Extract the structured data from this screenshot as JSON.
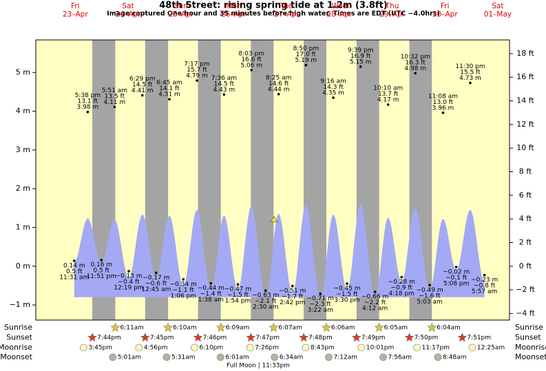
{
  "chart_data": {
    "type": "tide",
    "title": "48th Street: rising  spring tide at 1.2m (3.8ft)",
    "subtitle": "Image captured One hour and 35 minutes before high water. Times are EDT (UTC −4.0hrs)",
    "days": [
      {
        "name": "Fri",
        "date": "23–Apr"
      },
      {
        "name": "Sat",
        "date": "24–Apr"
      },
      {
        "name": "Sun",
        "date": "25–Apr"
      },
      {
        "name": "Mon",
        "date": "26–Apr"
      },
      {
        "name": "Tue",
        "date": "27–Apr"
      },
      {
        "name": "Wed",
        "date": "28–Apr"
      },
      {
        "name": "Thu",
        "date": "29–Apr"
      },
      {
        "name": "Fri",
        "date": "30–Apr"
      },
      {
        "name": "Sat",
        "date": "01–May"
      }
    ],
    "ylim": [
      -1.39,
      5.84
    ],
    "yticks": [
      {
        "value": -1,
        "label": "−1 m"
      },
      {
        "value": 0,
        "label": "0 m"
      },
      {
        "value": 1,
        "label": "1 m"
      },
      {
        "value": 2,
        "label": "2 m"
      },
      {
        "value": 3,
        "label": "3 m"
      },
      {
        "value": 4,
        "label": "4 m"
      },
      {
        "value": 5,
        "label": "5 m"
      }
    ],
    "y2lim": [
      -4.56,
      19.16
    ],
    "y2ticks": [
      {
        "value": -4,
        "label": "−4 ft"
      },
      {
        "value": -2,
        "label": "−2 ft"
      },
      {
        "value": 0,
        "label": "0 ft"
      },
      {
        "value": 2,
        "label": "2 ft"
      },
      {
        "value": 4,
        "label": "4 ft"
      },
      {
        "value": 6,
        "label": "6 ft"
      },
      {
        "value": 8,
        "label": "8 ft"
      },
      {
        "value": 10,
        "label": "10 ft"
      },
      {
        "value": 12,
        "label": "12 ft"
      },
      {
        "value": 14,
        "label": "14 ft"
      },
      {
        "value": 16,
        "label": "16 ft"
      },
      {
        "value": 18,
        "label": "18 ft"
      }
    ],
    "tides": {
      "times": [
        "11:31 am",
        "5:38 pm",
        "11:51 pm",
        "5:51 am",
        "12:19 pm",
        "6:29 pm",
        "12:45 am",
        "6:45 am",
        "1:06 pm",
        "7:17 pm",
        "1:38 am",
        "7:36 am",
        "1:54 pm",
        "8:03 pm",
        "2:30 am",
        "8:25 am",
        "2:42 pm",
        "8:50 pm",
        "3:22 am",
        "9:16 am",
        "3:30 pm",
        "9:39 pm",
        "4:12 am",
        "10:10 am",
        "4:18 pm",
        "10:32 pm",
        "5:03 am",
        "11:08 am",
        "5:08 pm",
        "11:30 pm",
        "5:57 am"
      ],
      "values": [
        0.14,
        3.98,
        0.16,
        4.11,
        -0.13,
        4.41,
        -0.17,
        4.31,
        -0.34,
        4.79,
        -0.44,
        4.43,
        -0.47,
        5.06,
        -0.63,
        4.44,
        -0.51,
        5.19,
        -0.71,
        4.35,
        -0.45,
        5.15,
        -0.66,
        4.17,
        -0.28,
        4.98,
        -0.49,
        3.96,
        -0.02,
        4.73,
        -0.23
      ],
      "value_labels": [
        "0.14 m",
        "3.98 m",
        "0.16 m",
        "4.11 m",
        "−0.13 m",
        "4.41 m",
        "−0.17 m",
        "4.31 m",
        "−0.34 m",
        "4.79 m",
        "−0.44 m",
        "4.43 m",
        "−0.47 m",
        "5.06 m",
        "−0.63 m",
        "4.44 m",
        "−0.51 m",
        "5.19 m",
        "−0.71 m",
        "4.35 m",
        "−0.45 m",
        "5.15 m",
        "−0.66 m",
        "4.17 m",
        "−0.28 m",
        "4.98 m",
        "−0.49 m",
        "3.96 m",
        "−0.02 m",
        "4.73 m",
        "−0.23 m"
      ],
      "ft_labels": [
        "0.5 ft",
        "13.1 ft",
        "0.5 ft",
        "13.5 ft",
        "−0.4 ft",
        "14.5 ft",
        "−0.6 ft",
        "14.1 ft",
        "−1.1 ft",
        "15.7 ft",
        "−1.4 ft",
        "14.5 ft",
        "−1.5 ft",
        "16.6 ft",
        "−2.1 ft",
        "14.6 ft",
        "−1.7 ft",
        "17.0 ft",
        "−2.3 ft",
        "14.3 ft",
        "−1.5 ft",
        "16.9 ft",
        "−2.2 ft",
        "13.7 ft",
        "−0.9 ft",
        "16.3 ft",
        "−1.6 ft",
        "13.0 ft",
        "−0.1 ft",
        "15.5 ft",
        "−0.8 ft"
      ],
      "curve_levels": [
        0.1,
        1.23,
        0.1,
        1.2,
        -0.3,
        1.33,
        -0.3,
        1.3,
        -0.5,
        1.45,
        -0.6,
        1.3,
        -0.6,
        1.55,
        -0.8,
        1.35,
        -0.7,
        1.58,
        -0.8,
        1.33,
        -0.6,
        1.58,
        -0.8,
        1.25,
        -0.4,
        1.5,
        -0.6,
        1.22,
        -0.1,
        1.45,
        -0.4
      ],
      "curve_base": -0.8,
      "fill_color": "#a3a9f5"
    },
    "marker_level": 1.2,
    "day_color": "#ffffc4",
    "night_color": "#a4a4a4",
    "astro": [
      {
        "name": "Sunrise",
        "shape": "star",
        "color": "#d8c838",
        "times": [
          null,
          "6:11am",
          "6:10am",
          "6:09am",
          "6:07am",
          "6:06am",
          "6:05am",
          "6:04am",
          null
        ]
      },
      {
        "name": "Sunset",
        "shape": "star",
        "color": "#d83a24",
        "times": [
          "7:44pm",
          "7:45pm",
          "7:46pm",
          "7:47pm",
          "7:48pm",
          "7:49pm",
          "7:50pm",
          "7:51pm",
          null
        ]
      },
      {
        "name": "Moonrise",
        "shape": "circle",
        "color": "#fff8c0",
        "times": [
          "3:45pm",
          "4:56pm",
          "6:10pm",
          "7:26pm",
          "8:43pm",
          "10:01pm",
          "11:17pm",
          null,
          "12:25am"
        ]
      },
      {
        "name": "Moonset",
        "shape": "circle",
        "color": "#b4b4a4",
        "times": [
          null,
          "5:01am",
          "5:31am",
          "6:01am",
          "6:34am",
          "7:12am",
          "7:56am",
          "8:48am",
          null
        ]
      }
    ],
    "note": "Full Moon | 11:33pm"
  }
}
